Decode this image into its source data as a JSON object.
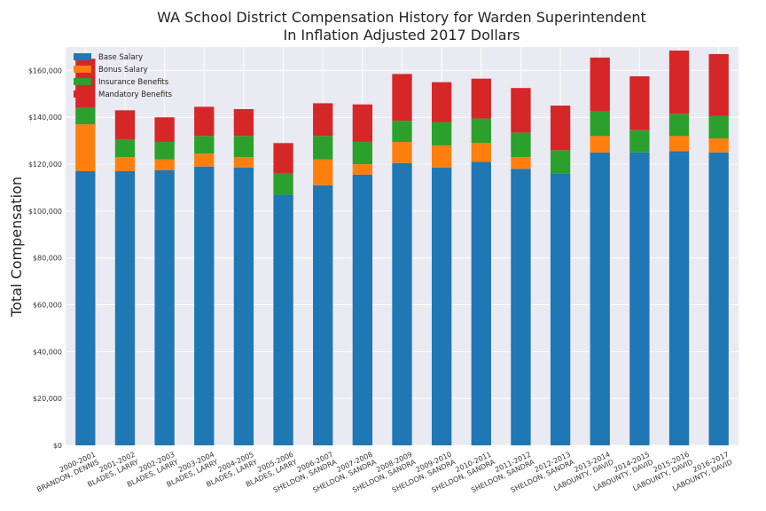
{
  "chart_data": {
    "type": "bar",
    "stacked": true,
    "title_lines": [
      "WA School District Compensation History for Warden Superintendent",
      "In Inflation Adjusted 2017 Dollars"
    ],
    "xlabel": "",
    "ylabel": "Total Compensation",
    "ylim": [
      0,
      170000
    ],
    "y_ticks": [
      0,
      20000,
      40000,
      60000,
      80000,
      100000,
      120000,
      140000,
      160000
    ],
    "y_tick_labels": [
      "$0",
      "$20,000",
      "$40,000",
      "$60,000",
      "$80,000",
      "$100,000",
      "$120,000",
      "$140,000",
      "$160,000"
    ],
    "grid": true,
    "legend_position": "top-left",
    "categories": [
      [
        "2000-2001",
        "BRANDON, DENNIS"
      ],
      [
        "2001-2002",
        "BLADES, LARRY"
      ],
      [
        "2002-2003",
        "BLADES, LARRY"
      ],
      [
        "2003-2004",
        "BLADES, LARRY"
      ],
      [
        "2004-2005",
        "BLADES, LARRY"
      ],
      [
        "2005-2006",
        "BLADES, LARRY"
      ],
      [
        "2006-2007",
        "SHELDON, SANDRA"
      ],
      [
        "2007-2008",
        "SHELDON, SANDRA"
      ],
      [
        "2008-2009",
        "SHELDON, SANDRA"
      ],
      [
        "2009-2010",
        "SHELDON, SANDRA"
      ],
      [
        "2010-2011",
        "SHELDON, SANDRA"
      ],
      [
        "2011-2012",
        "SHELDON, SANDRA"
      ],
      [
        "2012-2013",
        "SHELDON, SANDRA"
      ],
      [
        "2013-2014",
        "LABOUNTY, DAVID"
      ],
      [
        "2014-2015",
        "LABOUNTY, DAVID"
      ],
      [
        "2015-2016",
        "LABOUNTY, DAVID"
      ],
      [
        "2016-2017",
        "LABOUNTY, DAVID"
      ]
    ],
    "series": [
      {
        "name": "Base Salary",
        "color": "#1f77b4",
        "values": [
          117000,
          117000,
          117500,
          119000,
          118500,
          107000,
          111000,
          115500,
          120500,
          118500,
          121000,
          118000,
          116000,
          125000,
          125000,
          125500,
          125000
        ]
      },
      {
        "name": "Bonus Salary",
        "color": "#ff7f0e",
        "values": [
          20000,
          6000,
          4500,
          5500,
          4500,
          0,
          11000,
          4500,
          9000,
          9500,
          8000,
          5000,
          0,
          7000,
          0,
          6500,
          6000
        ]
      },
      {
        "name": "Insurance Benefits",
        "color": "#2ca02c",
        "values": [
          7000,
          7500,
          7500,
          7500,
          9000,
          9000,
          10000,
          9500,
          9000,
          10000,
          10500,
          10500,
          10000,
          10500,
          9500,
          9500,
          9500
        ]
      },
      {
        "name": "Mandatory Benefits",
        "color": "#d62728",
        "values": [
          21000,
          12500,
          10500,
          12500,
          11500,
          13000,
          14000,
          16000,
          20000,
          17000,
          17000,
          19000,
          19000,
          23000,
          23000,
          27000,
          26500
        ]
      }
    ]
  },
  "colors": {
    "plot_background": "#eaeaf2",
    "grid": "#ffffff"
  }
}
